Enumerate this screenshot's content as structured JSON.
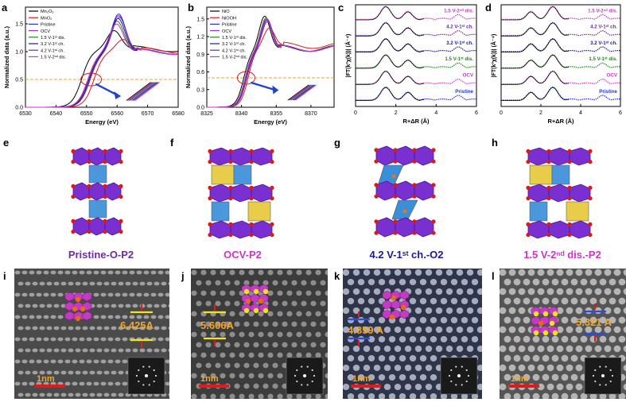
{
  "panels": {
    "a": "a",
    "b": "b",
    "c": "c",
    "d": "d",
    "e": "e",
    "f": "f",
    "g": "g",
    "h": "h",
    "i": "i",
    "j": "j",
    "k": "k",
    "l": "l"
  },
  "colors": {
    "black": "#000000",
    "red": "#e0191b",
    "blue": "#2233dd",
    "violet": "#9933cc",
    "green": "#1a8a1a",
    "navy": "#1a1a99",
    "purple": "#6a2ca8",
    "magenta": "#cc33cc",
    "orange": "#f5a623",
    "dash": "#f0a030"
  },
  "chart_data": [
    {
      "id": "a",
      "type": "line",
      "xlabel": "Energy (eV)",
      "ylabel": "Normalized data (a.u.)",
      "xlim": [
        6530,
        6580
      ],
      "ylim": [
        0,
        1.8
      ],
      "xticks": [
        6530,
        6540,
        6550,
        6560,
        6570,
        6580
      ],
      "yticks": [
        0.0,
        0.5,
        1.0,
        1.5
      ],
      "xtick_labels": [
        "6530",
        "6540",
        "6550",
        "6560",
        "6570",
        "6580"
      ],
      "ytick_labels": [
        "0.0",
        "0.5",
        "1.0",
        "1.5"
      ],
      "dashed_line_y": 0.5,
      "legend": [
        "Mn₂O₃",
        "MnO₂",
        "Pristine",
        "OCV",
        "1.5 V-1ˢᵗ dis.",
        "3.2 V-1ˢᵗ ch.",
        "4.2 V-1ˢᵗ ch.",
        "1.5 V-2ⁿᵈ dis."
      ],
      "series": [
        {
          "name": "Mn₂O₃",
          "color": "#000000",
          "edge": 6548.5,
          "peak": 6559,
          "peak_y": 1.38,
          "post": 1.05
        },
        {
          "name": "MnO₂",
          "color": "#e0191b",
          "edge": 6552.5,
          "peak": 6562,
          "peak_y": 1.22,
          "post": 1.02
        },
        {
          "name": "Pristine",
          "color": "#2233dd",
          "edge": 6551,
          "peak": 6560.5,
          "peak_y": 1.68,
          "post": 1.0
        },
        {
          "name": "OCV",
          "color": "#9933cc",
          "edge": 6551,
          "peak": 6560.5,
          "peak_y": 1.65,
          "post": 1.0
        },
        {
          "name": "1.5 V-1ˢᵗ dis.",
          "color": "#1a8a1a",
          "edge": 6550.5,
          "peak": 6560,
          "peak_y": 1.55,
          "post": 1.0
        },
        {
          "name": "3.2 V-1ˢᵗ ch.",
          "color": "#1a1a99",
          "edge": 6550.8,
          "peak": 6560.3,
          "peak_y": 1.6,
          "post": 1.0
        },
        {
          "name": "4.2 V-1ˢᵗ ch.",
          "color": "#6a2ca8",
          "edge": 6551.2,
          "peak": 6560.7,
          "peak_y": 1.62,
          "post": 1.0
        },
        {
          "name": "1.5 V-2ⁿᵈ dis.",
          "color": "#cc33cc",
          "edge": 6550.4,
          "peak": 6559.8,
          "peak_y": 1.5,
          "post": 1.0
        }
      ]
    },
    {
      "id": "b",
      "type": "line",
      "xlabel": "Energy (eV)",
      "ylabel": "Normalized data (a.u.)",
      "xlim": [
        8325,
        8380
      ],
      "ylim": [
        0,
        1.7
      ],
      "xticks": [
        8325,
        8340,
        8355,
        8370
      ],
      "yticks": [
        0.0,
        0.3,
        0.6,
        0.9,
        1.2,
        1.5
      ],
      "xtick_labels": [
        "8325",
        "8340",
        "8355",
        "8370"
      ],
      "ytick_labels": [
        "0.0",
        "0.3",
        "0.6",
        "0.9",
        "1.2",
        "1.5"
      ],
      "dashed_line_y": 0.5,
      "legend": [
        "NiO",
        "NiOOH",
        "Pristine",
        "OCV",
        "1.5 V-1ˢᵗ dis.",
        "3.2 V-1ˢᵗ ch.",
        "4.2 V-1ˢᵗ ch.",
        "1.5 V-2ⁿᵈ dis."
      ],
      "series": [
        {
          "name": "NiO",
          "color": "#000000",
          "edge": 8341,
          "peak": 8350,
          "peak_y": 1.55,
          "post": 1.0
        },
        {
          "name": "NiOOH",
          "color": "#e0191b",
          "edge": 8343,
          "peak": 8352,
          "peak_y": 1.35,
          "post": 1.05
        },
        {
          "name": "Pristine",
          "color": "#2233dd",
          "edge": 8342,
          "peak": 8351,
          "peak_y": 1.5,
          "post": 1.0
        },
        {
          "name": "OCV",
          "color": "#9933cc",
          "edge": 8342,
          "peak": 8351,
          "peak_y": 1.48,
          "post": 1.0
        },
        {
          "name": "1.5 V-1ˢᵗ dis.",
          "color": "#1a8a1a",
          "edge": 8341.6,
          "peak": 8350.6,
          "peak_y": 1.52,
          "post": 1.0
        },
        {
          "name": "3.2 V-1ˢᵗ ch.",
          "color": "#1a1a99",
          "edge": 8341.8,
          "peak": 8350.8,
          "peak_y": 1.5,
          "post": 1.0
        },
        {
          "name": "4.2 V-1ˢᵗ ch.",
          "color": "#6a2ca8",
          "edge": 8342.3,
          "peak": 8351.2,
          "peak_y": 1.46,
          "post": 1.0
        },
        {
          "name": "1.5 V-2ⁿᵈ dis.",
          "color": "#cc33cc",
          "edge": 8341.7,
          "peak": 8350.7,
          "peak_y": 1.5,
          "post": 1.0
        }
      ]
    },
    {
      "id": "c",
      "type": "line",
      "xlabel": "R+ΔR (Å)",
      "ylabel": "|FT(k³χ(k))| (Å⁻⁴)",
      "xlim": [
        0,
        6
      ],
      "xticks": [
        0,
        2,
        4,
        6
      ],
      "xtick_labels": [
        "0",
        "2",
        "4",
        "6"
      ],
      "series": [
        {
          "name": "Pristine",
          "color": "#2233dd",
          "offset": 0
        },
        {
          "name": "OCV",
          "color": "#cc33cc",
          "offset": 1
        },
        {
          "name": "1.5 V-1ˢᵗ dis.",
          "color": "#1a8a1a",
          "offset": 2
        },
        {
          "name": "3.2 V-1ˢᵗ ch.",
          "color": "#1a1a99",
          "offset": 3
        },
        {
          "name": "4.2 V-1ˢᵗ ch.",
          "color": "#6a2ca8",
          "offset": 4
        },
        {
          "name": "1.5 V-2ⁿᵈ dis.",
          "color": "#cc33cc",
          "offset": 5
        }
      ]
    },
    {
      "id": "d",
      "type": "line",
      "xlabel": "R+ΔR (Å)",
      "ylabel": "|FT(k³χ(k))| (Å⁻⁴)",
      "xlim": [
        0,
        6
      ],
      "xticks": [
        0,
        2,
        4,
        6
      ],
      "xtick_labels": [
        "0",
        "2",
        "4",
        "6"
      ],
      "series": [
        {
          "name": "Pristine",
          "color": "#2233dd",
          "offset": 0
        },
        {
          "name": "OCV",
          "color": "#cc33cc",
          "offset": 1
        },
        {
          "name": "1.5 V-1ˢᵗ dis.",
          "color": "#1a8a1a",
          "offset": 2
        },
        {
          "name": "3.2 V-1ˢᵗ ch.",
          "color": "#1a1a99",
          "offset": 3
        },
        {
          "name": "4.2 V-1ˢᵗ ch.",
          "color": "#6a2ca8",
          "offset": 4
        },
        {
          "name": "1.5 V-2ⁿᵈ dis.",
          "color": "#cc33cc",
          "offset": 5
        }
      ]
    }
  ],
  "structures": {
    "e": {
      "label": "Pristine-O-P2",
      "color": "#6a2ca8"
    },
    "f": {
      "label": "OCV-P2",
      "color": "#cc33cc"
    },
    "g": {
      "label": "4.2 V-1ˢᵗ ch.-O2",
      "color": "#1a1a99"
    },
    "h": {
      "label": "1.5 V-2ⁿᵈ dis.-P2",
      "color": "#cc33cc"
    }
  },
  "micrographs": {
    "i": {
      "spacing": "6.425A",
      "scale": "1nm"
    },
    "j": {
      "spacing": "5.606A",
      "scale": "1nm"
    },
    "k": {
      "spacing": "4.859 A",
      "scale": "1nm"
    },
    "l": {
      "spacing": "5.321 A",
      "scale": "1nm"
    }
  }
}
